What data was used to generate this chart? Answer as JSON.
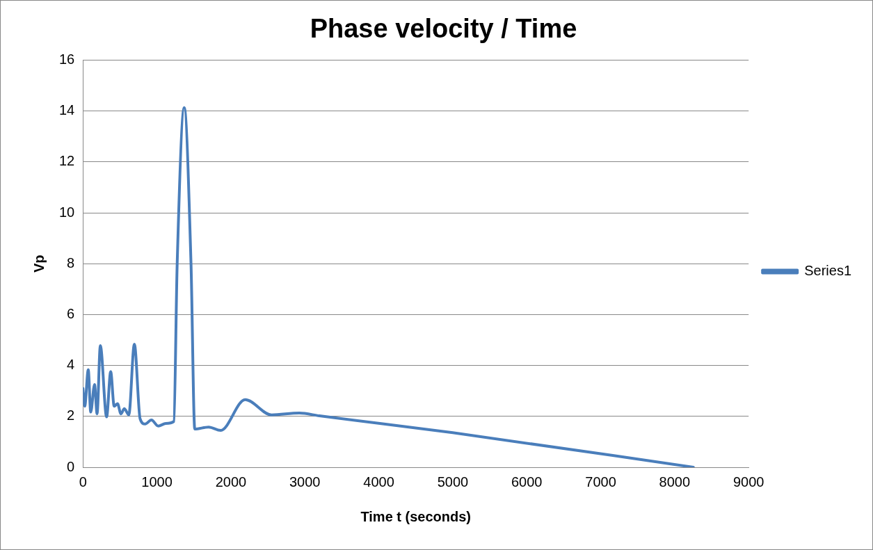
{
  "chart_data": {
    "type": "line",
    "title": "Phase velocity / Time",
    "xlabel": "Time t (seconds)",
    "ylabel": "Vp",
    "xlim": [
      0,
      9000
    ],
    "xticks": [
      0,
      1000,
      2000,
      3000,
      4000,
      5000,
      6000,
      7000,
      8000,
      9000
    ],
    "ylim": [
      0,
      16
    ],
    "yticks": [
      0,
      2,
      4,
      6,
      8,
      10,
      12,
      14,
      16
    ],
    "grid": "y",
    "legend": "right",
    "marker": "none",
    "line_style": "solid",
    "series": [
      {
        "name": "Series1",
        "color": "#4a7ebb",
        "x": [
          0,
          24,
          72,
          105,
          157,
          191,
          235,
          320,
          375,
          422,
          467,
          514,
          559,
          620,
          695,
          773,
          841,
          926,
          1018,
          1120,
          1229,
          1274,
          1369,
          1461,
          1512,
          1699,
          1862,
          2193,
          2550,
          2925,
          3197,
          5000,
          8253
        ],
        "values": [
          3.1,
          2.4,
          3.83,
          2.17,
          3.25,
          2.1,
          4.78,
          1.98,
          3.76,
          2.4,
          2.5,
          2.1,
          2.3,
          2.06,
          4.84,
          1.9,
          1.7,
          1.86,
          1.62,
          1.72,
          1.8,
          8,
          14.14,
          8,
          1.5,
          1.58,
          1.45,
          2.66,
          2.06,
          2.13,
          2.02,
          1.36,
          0
        ]
      }
    ]
  }
}
